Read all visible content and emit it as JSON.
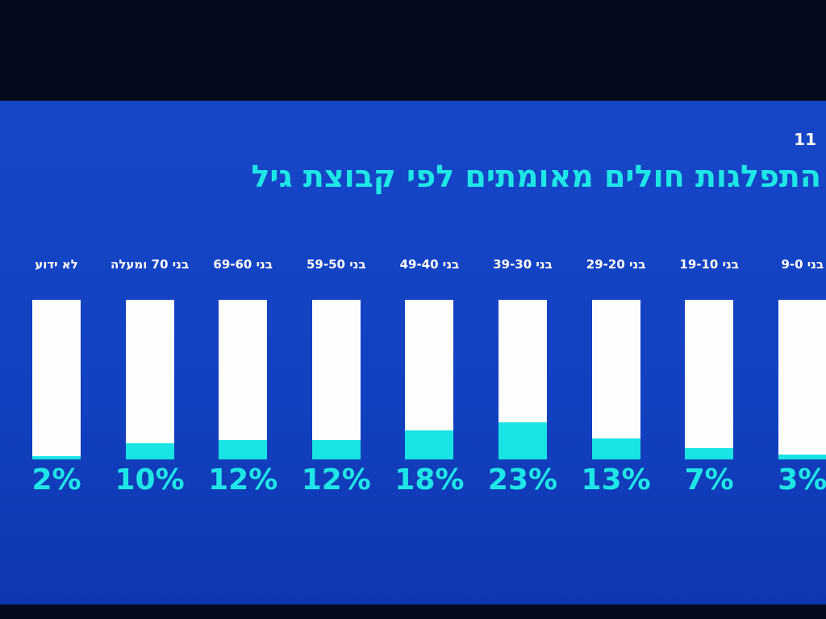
{
  "logo": "11",
  "chart_data": {
    "type": "bar",
    "title": "התפלגות חולים מאומתים לפי קבוצת גיל",
    "categories": [
      "לא ידוע",
      "בני 70 ומעלה",
      "בני 69-60",
      "בני 59-50",
      "בני 49-40",
      "בני 39-30",
      "בני 29-20",
      "בני 19-10",
      "בני 9-0"
    ],
    "values": [
      2,
      10,
      12,
      12,
      18,
      23,
      13,
      7,
      3
    ],
    "value_labels": [
      "2%",
      "10%",
      "12%",
      "12%",
      "18%",
      "23%",
      "13%",
      "7%",
      "3%"
    ],
    "color": "#19e3e3",
    "ylim": [
      0,
      100
    ]
  }
}
